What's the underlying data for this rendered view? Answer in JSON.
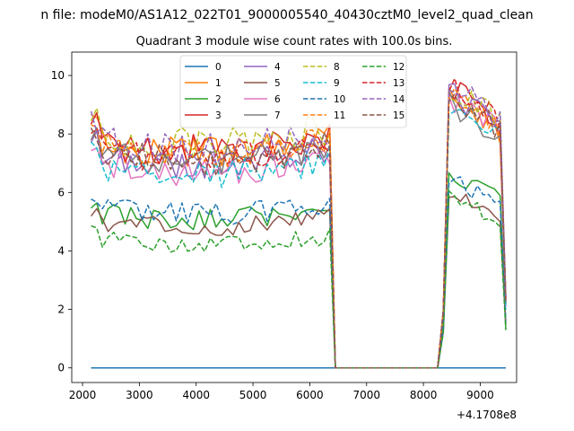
{
  "suptitle": "n file: modeM0/AS1A12_022T01_9000005540_40430cztM0_level2_quad_clean",
  "chart_data": {
    "type": "line",
    "title": "Quadrant 3 module wise count rates with 100.0s bins.",
    "xlabel": "",
    "ylabel": "",
    "x_offset_label": "+4.1708e8",
    "xlim": [
      1810,
      9640
    ],
    "ylim": [
      -0.5,
      10.8
    ],
    "xticks": [
      2000,
      3000,
      4000,
      5000,
      6000,
      7000,
      8000,
      9000
    ],
    "yticks": [
      0,
      2,
      4,
      6,
      8,
      10
    ],
    "grid": false,
    "legend": {
      "placement": "top-center",
      "columns": 4
    },
    "x_segments": [
      {
        "x_start": 2150,
        "x_end": 6350,
        "step": 100,
        "kind": "data"
      },
      {
        "x_start": 6450,
        "x_end": 8150,
        "step": 100,
        "kind": "zero"
      },
      {
        "x_start": 8250,
        "x_end": 9450,
        "step": 100,
        "kind": "data"
      }
    ],
    "series": [
      {
        "name": "0",
        "color": "#1f77b4",
        "dash": "solid",
        "segA_level": 0.0,
        "segB_level": 0.0,
        "end": 0.0
      },
      {
        "name": "1",
        "color": "#ff7f0e",
        "dash": "solid",
        "segA_level": 7.7,
        "segB_level": 8.5,
        "end": 2.2
      },
      {
        "name": "2",
        "color": "#2ca02c",
        "dash": "solid",
        "segA_level": 5.3,
        "segB_level": 6.2,
        "end": 1.3
      },
      {
        "name": "3",
        "color": "#d62728",
        "dash": "solid",
        "segA_level": 7.8,
        "segB_level": 9.0,
        "end": 2.4
      },
      {
        "name": "4",
        "color": "#9467bd",
        "dash": "solid",
        "segA_level": 7.3,
        "segB_level": 8.8,
        "end": 2.3
      },
      {
        "name": "5",
        "color": "#8c564b",
        "dash": "solid",
        "segA_level": 5.0,
        "segB_level": 5.6,
        "end": 1.5
      },
      {
        "name": "6",
        "color": "#e377c2",
        "dash": "solid",
        "segA_level": 7.0,
        "segB_level": 8.6,
        "end": 2.1
      },
      {
        "name": "7",
        "color": "#7f7f7f",
        "dash": "solid",
        "segA_level": 7.4,
        "segB_level": 8.4,
        "end": 2.2
      },
      {
        "name": "8",
        "color": "#bcbd22",
        "dash": "dashed",
        "segA_level": 8.0,
        "segB_level": 9.0,
        "end": 2.5
      },
      {
        "name": "9",
        "color": "#17becf",
        "dash": "dashed",
        "segA_level": 6.9,
        "segB_level": 8.3,
        "end": 2.0
      },
      {
        "name": "10",
        "color": "#1f77b4",
        "dash": "dashed",
        "segA_level": 5.5,
        "segB_level": 6.0,
        "end": 1.6
      },
      {
        "name": "11",
        "color": "#ff7f0e",
        "dash": "dashed",
        "segA_level": 7.6,
        "segB_level": 8.7,
        "end": 2.3
      },
      {
        "name": "12",
        "color": "#2ca02c",
        "dash": "dashed",
        "segA_level": 4.4,
        "segB_level": 5.4,
        "end": 1.3
      },
      {
        "name": "13",
        "color": "#d62728",
        "dash": "dashed",
        "segA_level": 7.5,
        "segB_level": 8.9,
        "end": 2.4
      },
      {
        "name": "14",
        "color": "#9467bd",
        "dash": "dashed",
        "segA_level": 7.8,
        "segB_level": 9.0,
        "end": 2.4
      },
      {
        "name": "15",
        "color": "#8c564b",
        "dash": "dashed",
        "segA_level": 7.4,
        "segB_level": 8.7,
        "end": 2.2
      }
    ]
  }
}
